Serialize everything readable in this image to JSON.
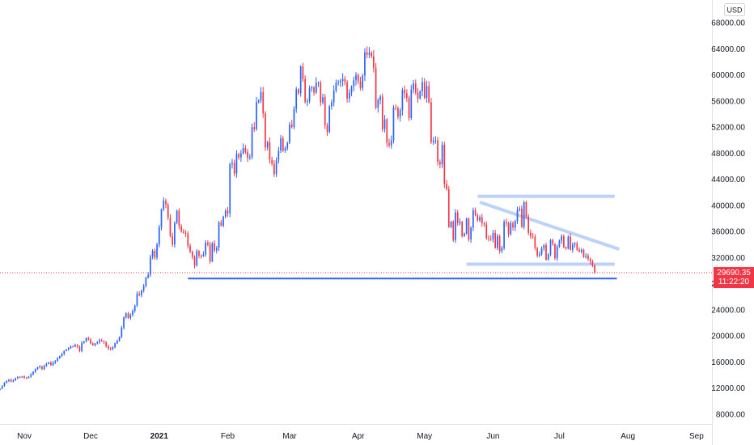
{
  "colors": {
    "up": "#2962ff",
    "down": "#f23645",
    "axis_line": "#e0e3eb",
    "tick_text": "#131722",
    "support_line": "#2962ff",
    "channel_fill": "#bbd2fb",
    "last_price_line": "#f23645"
  },
  "axis": {
    "currency": "USD"
  },
  "last_price": {
    "value": 29690.35,
    "label": "29690.35",
    "countdown": "11:22:20"
  },
  "chart_data": {
    "type": "candlestick",
    "title": "",
    "xlabel": "",
    "ylabel": "",
    "y_scale": "linear",
    "grid": false,
    "ylim": [
      6500,
      71500
    ],
    "y_ticks": [
      {
        "value": 8000,
        "label": "8000.00"
      },
      {
        "value": 12000,
        "label": "12000.00"
      },
      {
        "value": 16000,
        "label": "16000.00"
      },
      {
        "value": 20000,
        "label": "20000.00"
      },
      {
        "value": 24000,
        "label": "24000.00"
      },
      {
        "value": 28000,
        "label": "28000.00"
      },
      {
        "value": 32000,
        "label": "32000.00"
      },
      {
        "value": 36000,
        "label": "36000.00"
      },
      {
        "value": 40000,
        "label": "40000.00"
      },
      {
        "value": 44000,
        "label": "44000.00"
      },
      {
        "value": 48000,
        "label": "48000.00"
      },
      {
        "value": 52000,
        "label": "52000.00"
      },
      {
        "value": 56000,
        "label": "56000.00"
      },
      {
        "value": 60000,
        "label": "60000.00"
      },
      {
        "value": 64000,
        "label": "64000.00"
      },
      {
        "value": 68000,
        "label": "68000.00"
      }
    ],
    "xlim": [
      "2020-10-21",
      "2021-09-08"
    ],
    "x_ticks": [
      {
        "date": "2020-11-01",
        "label": "Nov",
        "bold": false
      },
      {
        "date": "2020-12-01",
        "label": "Dec",
        "bold": false
      },
      {
        "date": "2021-01-01",
        "label": "2021",
        "bold": true
      },
      {
        "date": "2021-02-01",
        "label": "Feb",
        "bold": false
      },
      {
        "date": "2021-03-01",
        "label": "Mar",
        "bold": false
      },
      {
        "date": "2021-04-01",
        "label": "Apr",
        "bold": false
      },
      {
        "date": "2021-05-01",
        "label": "May",
        "bold": false
      },
      {
        "date": "2021-06-01",
        "label": "Jun",
        "bold": false
      },
      {
        "date": "2021-07-01",
        "label": "Jul",
        "bold": false
      },
      {
        "date": "2021-08-01",
        "label": "Aug",
        "bold": false
      },
      {
        "date": "2021-09-01",
        "label": "Sep",
        "bold": false
      }
    ],
    "start_date": "2020-10-21",
    "closes": [
      11900,
      12300,
      12800,
      13100,
      13300,
      13000,
      13200,
      13500,
      13700,
      13650,
      13800,
      13600,
      13550,
      13750,
      14100,
      14500,
      14900,
      15200,
      15300,
      14900,
      15400,
      15700,
      15950,
      15500,
      15900,
      16200,
      16550,
      16900,
      17200,
      17700,
      17900,
      18100,
      18400,
      18350,
      18650,
      18350,
      17700,
      18950,
      19150,
      19650,
      19450,
      18850,
      18550,
      18850,
      19050,
      19350,
      19200,
      19050,
      18400,
      18050,
      17950,
      18250,
      18850,
      19250,
      19850,
      21250,
      22850,
      23450,
      22750,
      23250,
      23850,
      24650,
      26450,
      26250,
      26950,
      27650,
      28950,
      29350,
      32150,
      33050,
      32000,
      34000,
      36700,
      39400,
      40750,
      40150,
      38150,
      35300,
      34000,
      37350,
      39200,
      36850,
      36000,
      35800,
      35700,
      33800,
      32950,
      32100,
      30800,
      33000,
      32300,
      32250,
      32500,
      34300,
      34000,
      31400,
      34200,
      33100,
      33500,
      37400,
      36900,
      38300,
      39200,
      38800,
      46300,
      46500,
      44900,
      47900,
      47350,
      48000,
      48800,
      48200,
      47300,
      47400,
      52000,
      51700,
      55850,
      56100,
      57400,
      54100,
      48900,
      49700,
      47000,
      46400,
      44800,
      46900,
      48400,
      50300,
      48400,
      48800,
      49600,
      52400,
      52000,
      54800,
      57800,
      57200,
      61300,
      59400,
      55900,
      56000,
      58000,
      58100,
      57300,
      58800,
      58800,
      55800,
      56600,
      52300,
      51300,
      55200,
      55800,
      57600,
      58800,
      58900,
      59100,
      59400,
      58900,
      56400,
      57300,
      58200,
      59200,
      60000,
      59000,
      58000,
      59900,
      63500,
      63100,
      63400,
      62900,
      61100,
      55000,
      56200,
      56700,
      51700,
      53200,
      49600,
      49200,
      50000,
      55000,
      54900,
      53600,
      54600,
      57700,
      57200,
      56500,
      53400,
      57800,
      58700,
      57300,
      56400,
      57500,
      58900,
      56500,
      58300,
      55800,
      49700,
      49900,
      50000,
      46700,
      46300,
      49300,
      43300,
      42500,
      36700,
      37500,
      34700,
      38900,
      37300,
      37500,
      35300,
      35700,
      38000,
      34800,
      36600,
      39300,
      38500,
      37700,
      38200,
      37300,
      37100,
      35000,
      34900,
      34800,
      35800,
      33500,
      35300,
      33000,
      33500,
      37500,
      37300,
      35600,
      37300,
      36600,
      37600,
      39300,
      39500,
      36700,
      40500,
      38300,
      35800,
      35300,
      35200,
      33500,
      32300,
      32500,
      33400,
      33900,
      31700,
      32500,
      34700,
      34100,
      31900,
      33700,
      34600,
      35300,
      33600,
      33400,
      35200,
      33200,
      34000,
      34200,
      33200,
      32900,
      33200,
      32100,
      32300,
      31800,
      31400,
      30800,
      29690
    ]
  }
}
